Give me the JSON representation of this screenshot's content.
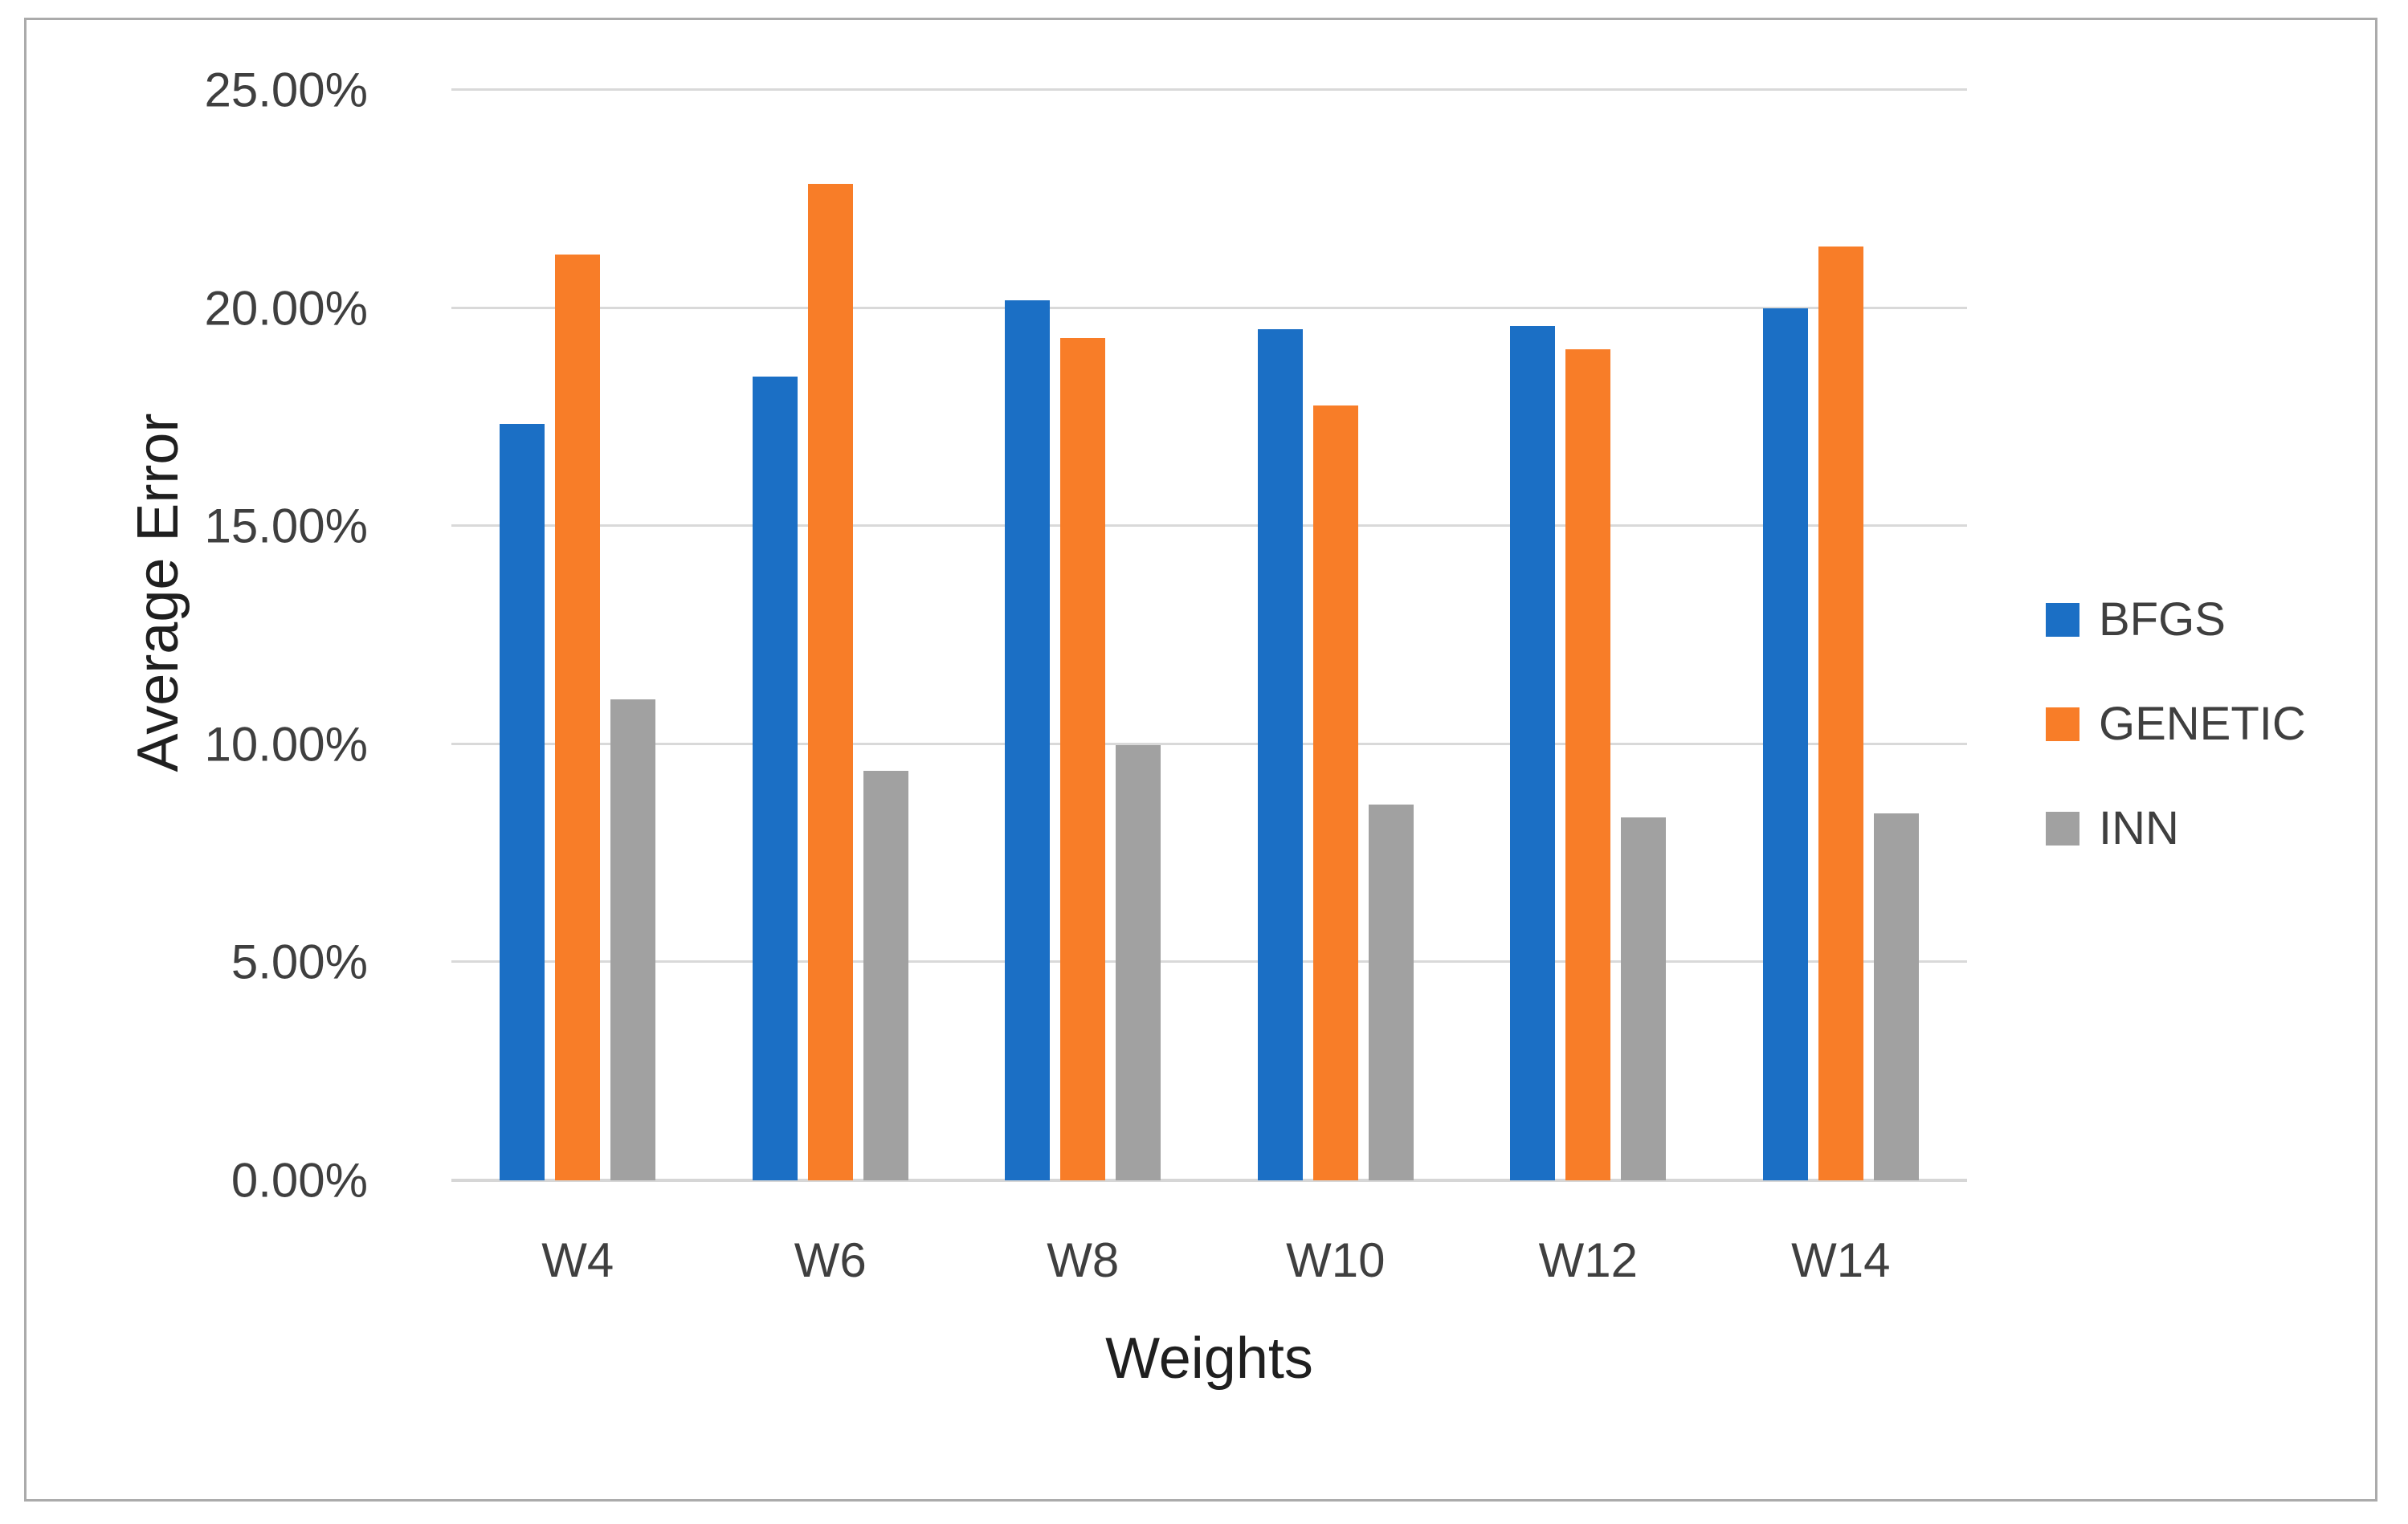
{
  "chart_data": {
    "type": "bar",
    "title": "",
    "xlabel": "Weights",
    "ylabel": "Average Error",
    "categories": [
      "W4",
      "W6",
      "W8",
      "W10",
      "W12",
      "W14"
    ],
    "series": [
      {
        "name": "BFGS",
        "color": "#1B6FC5",
        "values": [
          17.35,
          18.43,
          20.18,
          19.52,
          19.58,
          20.0
        ]
      },
      {
        "name": "GENETIC",
        "color": "#F87D28",
        "values": [
          21.22,
          22.85,
          19.31,
          17.76,
          19.06,
          21.41
        ]
      },
      {
        "name": "INN",
        "color": "#A1A1A1",
        "values": [
          11.02,
          9.38,
          9.98,
          8.61,
          8.32,
          8.41
        ]
      }
    ],
    "ylim": [
      0,
      25
    ],
    "y_ticks": [
      {
        "label": "25.00%",
        "value": 25
      },
      {
        "label": "20.00%",
        "value": 20
      },
      {
        "label": "15.00%",
        "value": 15
      },
      {
        "label": "10.00%",
        "value": 10
      },
      {
        "label": "5.00%",
        "value": 5
      },
      {
        "label": "0.00%",
        "value": 0
      }
    ],
    "grid": "horizontal",
    "legend_position": "right"
  },
  "colors": {
    "gridline": "#D9D9D9",
    "axis_line": "#D6D6D6",
    "frame_border": "#ABABAB",
    "tick_text": "#3F3F3F",
    "axis_title_text": "#1F1F1F",
    "background": "#FFFFFF"
  }
}
